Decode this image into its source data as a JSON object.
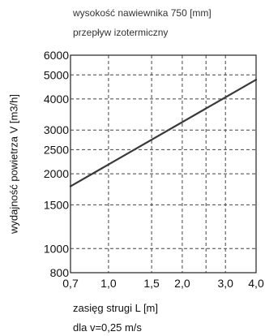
{
  "header": {
    "line1": "wysokość nawiewnika 750 [mm]",
    "line2": "przepływ izotermiczny"
  },
  "footer": {
    "line1": "zasięg strugi L [m]",
    "line2": "dla v=0,25 m/s"
  },
  "chart_data": {
    "type": "line",
    "title": "",
    "xlabel": "zasięg strugi L [m]",
    "ylabel": "wydajność powietrza V [m3/h]",
    "x_scale": "log",
    "y_scale": "log",
    "xlim": [
      0.7,
      4.0
    ],
    "ylim": [
      800,
      6000
    ],
    "x_ticks": [
      {
        "value": 0.7,
        "label": "0,7"
      },
      {
        "value": 1.0,
        "label": "1,0"
      },
      {
        "value": 1.5,
        "label": "1,5"
      },
      {
        "value": 2.0,
        "label": "2,0"
      },
      {
        "value": 3.0,
        "label": "3,0"
      },
      {
        "value": 4.0,
        "label": "4,0"
      }
    ],
    "x_grid": [
      1.0,
      1.5,
      2.0,
      2.5,
      3.0
    ],
    "y_ticks": [
      {
        "value": 800,
        "label": "800"
      },
      {
        "value": 1000,
        "label": "1000"
      },
      {
        "value": 1500,
        "label": "1500"
      },
      {
        "value": 2000,
        "label": "2000"
      },
      {
        "value": 2500,
        "label": "2500"
      },
      {
        "value": 3000,
        "label": "3000"
      },
      {
        "value": 4000,
        "label": "4000"
      },
      {
        "value": 5000,
        "label": "5000"
      },
      {
        "value": 6000,
        "label": "6000"
      }
    ],
    "y_grid": [
      1000,
      1500,
      2000,
      2500,
      3000,
      4000,
      5000
    ],
    "grid": true,
    "grid_style": "dashed",
    "series": [
      {
        "color": "#3a3a3a",
        "points": [
          {
            "x": 0.7,
            "y": 1780
          },
          {
            "x": 4.0,
            "y": 4780
          }
        ]
      }
    ]
  }
}
